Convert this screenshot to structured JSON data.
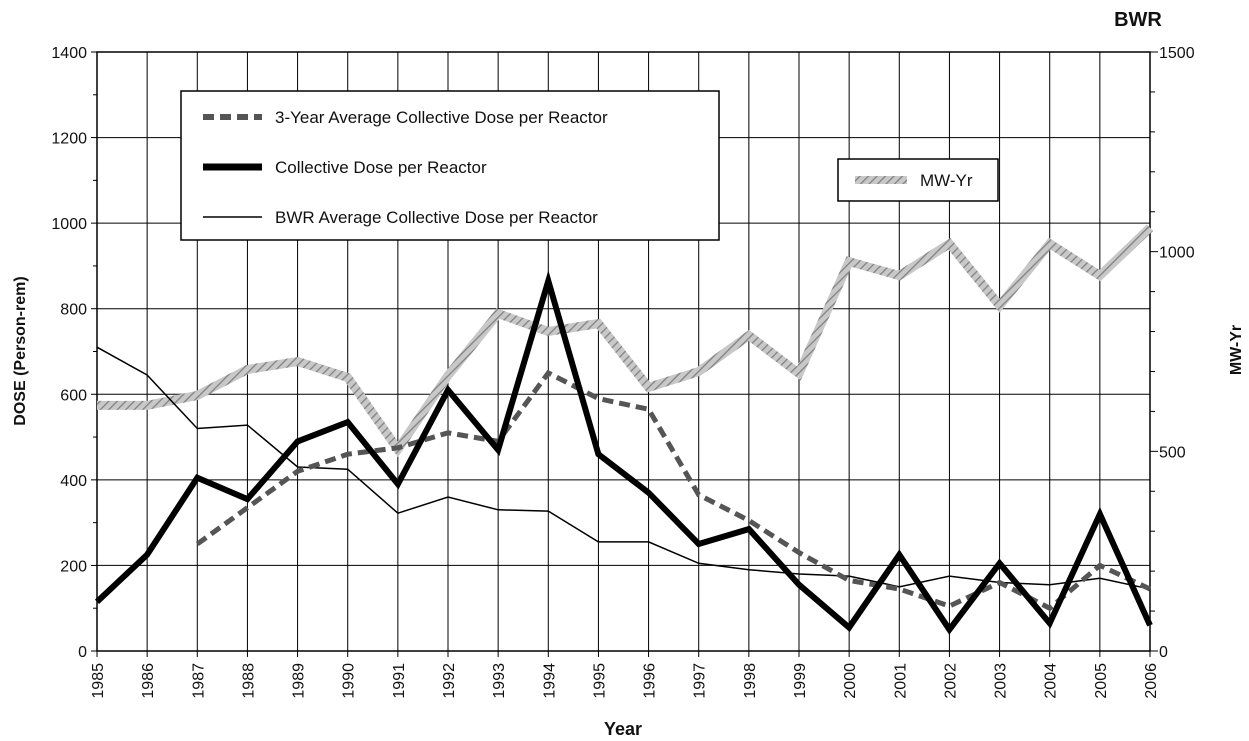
{
  "chart_data": {
    "type": "line",
    "title": "BWR",
    "xlabel": "Year",
    "ylabel": "DOSE (Person-rem)",
    "y2label": "MW-Yr",
    "ylim": [
      0,
      1400
    ],
    "y2lim": [
      0,
      1500
    ],
    "grid": true,
    "categories": [
      "1985",
      "1986",
      "1987",
      "1988",
      "1989",
      "1990",
      "1991",
      "1992",
      "1993",
      "1994",
      "1995",
      "1996",
      "1997",
      "1998",
      "1999",
      "2000",
      "2001",
      "2002",
      "2003",
      "2004",
      "2005",
      "2006"
    ],
    "yticks": [
      0,
      200,
      400,
      600,
      800,
      1000,
      1200,
      1400
    ],
    "y2ticks": [
      0,
      500,
      1000,
      1500
    ],
    "series": [
      {
        "name": "3-Year Average Collective Dose per Reactor",
        "axis": "left",
        "style": "dashed",
        "color": "#555555",
        "values": [
          null,
          null,
          250,
          335,
          420,
          460,
          475,
          510,
          490,
          650,
          590,
          565,
          365,
          305,
          230,
          165,
          145,
          105,
          160,
          100,
          200,
          145
        ]
      },
      {
        "name": "Collective Dose per Reactor",
        "axis": "left",
        "style": "thick",
        "color": "#000000",
        "values": [
          115,
          225,
          405,
          355,
          490,
          535,
          390,
          610,
          470,
          865,
          460,
          370,
          250,
          285,
          155,
          55,
          225,
          50,
          205,
          65,
          320,
          60
        ]
      },
      {
        "name": "BWR Average Collective Dose per Reactor",
        "axis": "left",
        "style": "thin",
        "color": "#000000",
        "values": [
          710,
          645,
          520,
          528,
          430,
          425,
          322,
          360,
          330,
          327,
          255,
          255,
          205,
          190,
          180,
          175,
          150,
          175,
          160,
          155,
          170,
          145
        ]
      },
      {
        "name": "MW-Yr",
        "axis": "right",
        "style": "hatched",
        "color": "#a0a0a0",
        "values": [
          615,
          615,
          640,
          705,
          725,
          685,
          505,
          690,
          845,
          800,
          820,
          660,
          700,
          790,
          695,
          975,
          940,
          1020,
          865,
          1020,
          940,
          1060
        ]
      }
    ],
    "legend": [
      {
        "label": "3-Year Average Collective Dose per Reactor",
        "style": "dashed"
      },
      {
        "label": "Collective Dose per Reactor",
        "style": "thick"
      },
      {
        "label": "BWR Average Collective Dose per Reactor",
        "style": "thin"
      }
    ],
    "legend2": {
      "label": "MW-Yr",
      "style": "hatched"
    }
  }
}
